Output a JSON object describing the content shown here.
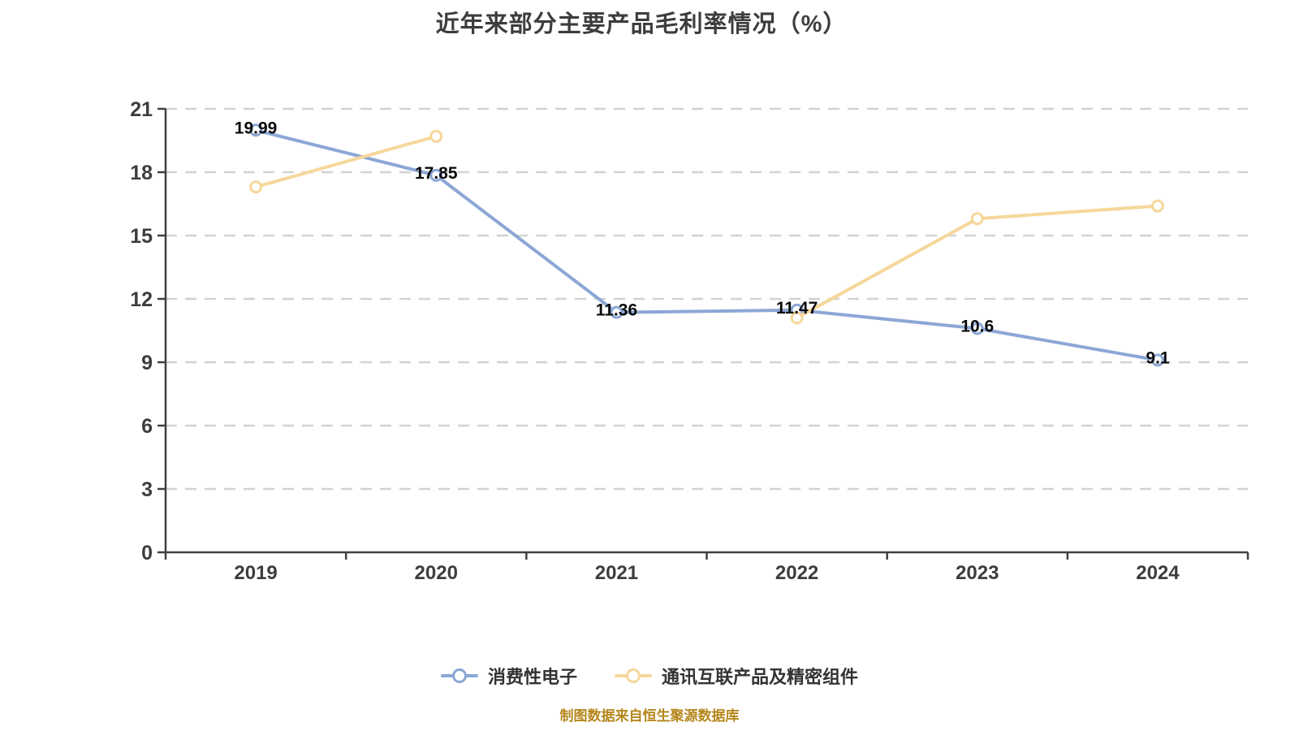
{
  "chart_data": {
    "type": "line",
    "title": "近年来部分主要产品毛利率情况（%）",
    "categories": [
      "2019",
      "2020",
      "2021",
      "2022",
      "2023",
      "2024"
    ],
    "series": [
      {
        "name": "消费性电子",
        "color": "#8ca7d6",
        "values": [
          19.99,
          17.85,
          11.36,
          11.47,
          10.6,
          9.1
        ],
        "labels": [
          "19.99",
          "17.85",
          "11.36",
          "11.47",
          "10.6",
          "9.1"
        ]
      },
      {
        "name": "通讯互联产品及精密组件",
        "color": "#f6d79a",
        "values": [
          17.3,
          19.7,
          null,
          11.1,
          15.8,
          16.4
        ],
        "labels": null
      }
    ],
    "xlabel": "",
    "ylabel": "",
    "ylim": [
      0,
      21
    ],
    "yticks": [
      0,
      3,
      6,
      9,
      12,
      15,
      18,
      21
    ],
    "grid": "dashed horizontal",
    "legend_position": "bottom"
  },
  "footer": {
    "text": "制图数据来自恒生聚源数据库"
  },
  "colors": {
    "background": "#ffffff",
    "axis": "#404040",
    "grid": "#d2d2d2",
    "tick_label": "#3d3d3d",
    "data_label": "#0a0a0a",
    "legend_text": "#333333",
    "footer_text": "#b5861b"
  }
}
